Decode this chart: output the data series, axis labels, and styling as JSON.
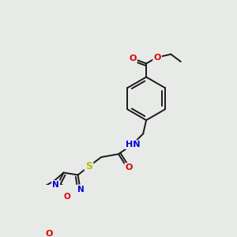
{
  "bg_color": "#e8eae8",
  "bond_color": "#1a1a1a",
  "bond_width": 1.4,
  "atom_colors": {
    "N": "#0000dd",
    "O": "#dd0000",
    "S": "#bbbb00",
    "H": "#666666"
  },
  "figsize": [
    3.0,
    3.0
  ],
  "dpi": 100,
  "scale": 1.0
}
